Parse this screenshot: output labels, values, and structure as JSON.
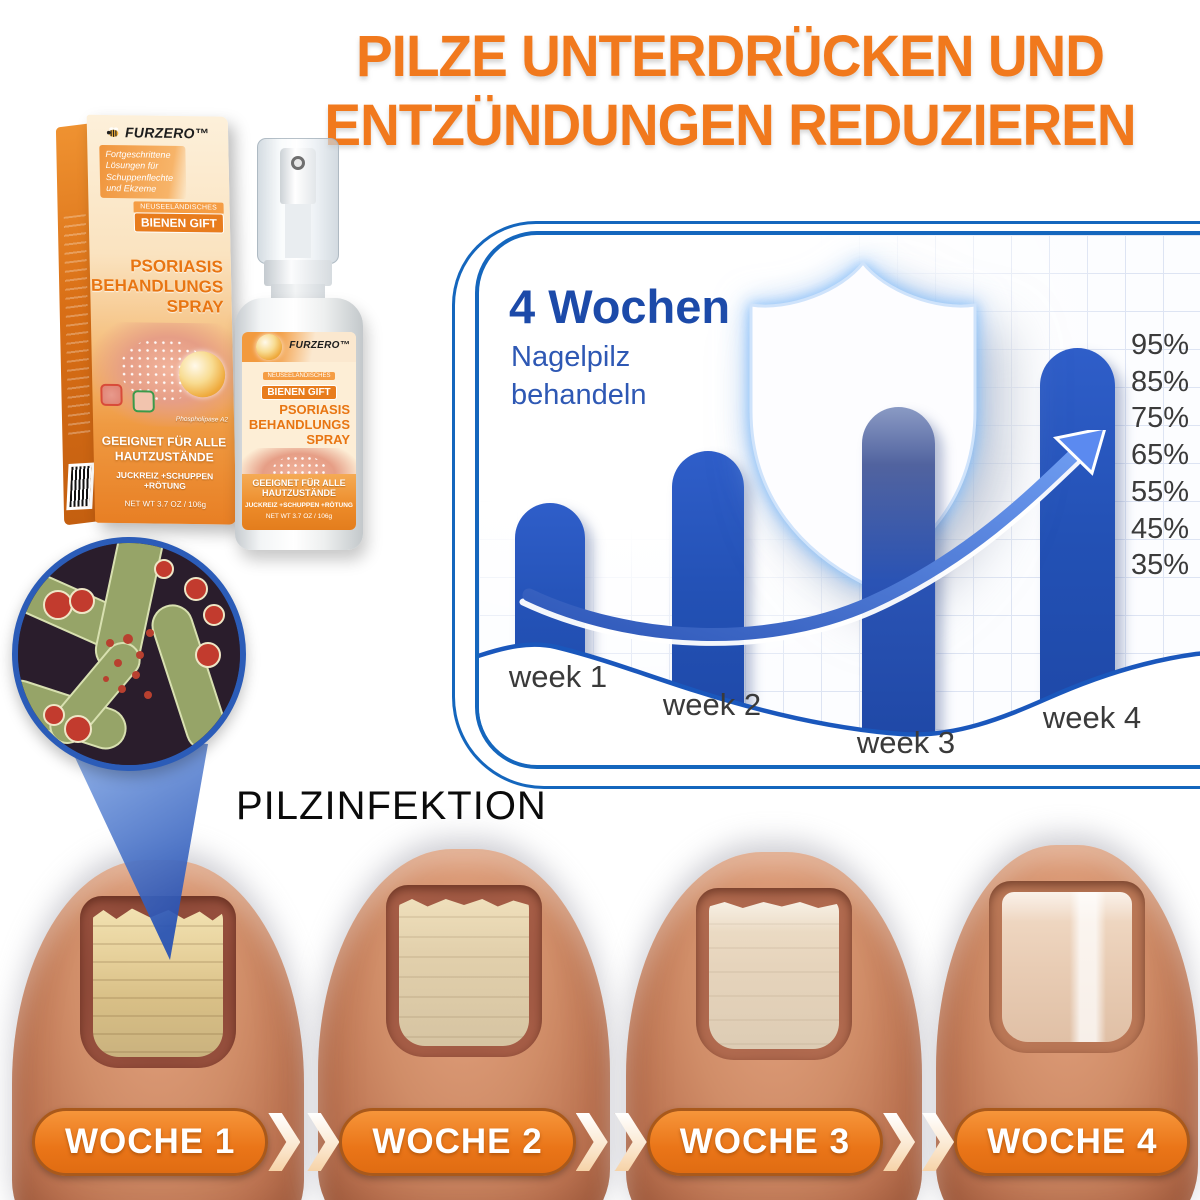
{
  "headline": {
    "line1": "PILZE UNTERDRÜCKEN UND",
    "line2": "ENTZÜNDUNGEN REDUZIEREN",
    "color": "#F1791D"
  },
  "product": {
    "brand": "FURZERO™",
    "tagline": "Fortgeschrittene Lösungen für Schuppenflechte und Ekzeme",
    "badge_small": "NEUSEELÄNDISCHES",
    "badge_bold": "BIENEN GIFT",
    "title_line1": "PSORIASIS",
    "title_line2": "BEHANDLUNGS",
    "title_line3": "SPRAY",
    "ingredient_note": "Phospholipase A2",
    "suitable_line1": "GEEIGNET FÜR ALLE",
    "suitable_line2": "HAUTZUSTÄNDE",
    "benefits": "JUCKREIZ +SCHUPPEN +RÖTUNG",
    "net_weight": "NET WT 3.7 OZ / 106g"
  },
  "chart_data": {
    "type": "bar",
    "title": "4 Wochen",
    "subtitle": "Nagelpilz behandeln",
    "categories": [
      "week 1",
      "week 2",
      "week 3",
      "week 4"
    ],
    "values": [
      53,
      67,
      79,
      95
    ],
    "unit": "%",
    "y_ticks": [
      "95%",
      "85%",
      "75%",
      "65%",
      "55%",
      "45%",
      "35%"
    ],
    "ylim": [
      30,
      100
    ],
    "y_axis_side": "right",
    "grid": true,
    "legend": "none",
    "bar_color": "#2351B5",
    "panel_border_color": "#1466BD",
    "title_color": "#1C4AA9",
    "annotations": [
      "white shield with blue glow over week-3 bar",
      "curved upward trend arrow"
    ]
  },
  "magnifier": {
    "label": "PILZINFEKTION"
  },
  "progress": {
    "labels": [
      "WOCHE 1",
      "WOCHE 2",
      "WOCHE 3",
      "WOCHE 4"
    ],
    "badge_color": "#EC7A1E",
    "badge_border": "#A9591B"
  }
}
